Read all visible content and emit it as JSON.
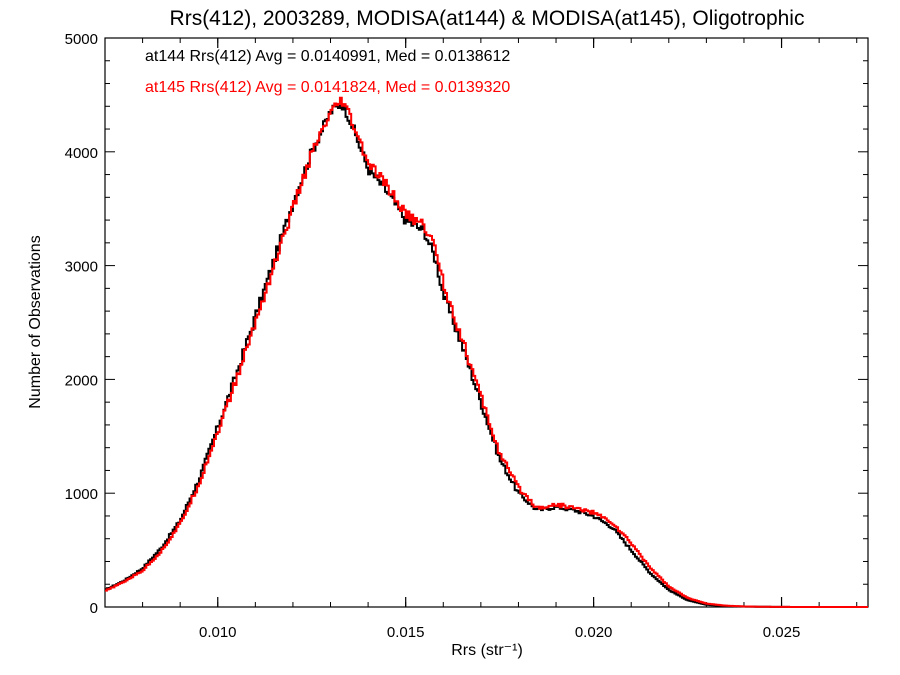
{
  "chart_data": {
    "type": "line",
    "title": "Rrs(412), 2003289, MODISA(at144) & MODISA(at145), Oligotrophic",
    "xlabel": "Rrs (str⁻¹)",
    "ylabel": "Number of Observations",
    "xlim": [
      0.007,
      0.0273
    ],
    "ylim": [
      0,
      5000
    ],
    "xticks": [
      0.01,
      0.015,
      0.02,
      0.025
    ],
    "xtick_labels": [
      "0.010",
      "0.015",
      "0.020",
      "0.025"
    ],
    "yticks": [
      0,
      1000,
      2000,
      3000,
      4000,
      5000
    ],
    "ytick_labels": [
      "0",
      "1000",
      "2000",
      "3000",
      "4000",
      "5000"
    ],
    "grid": false,
    "legend_position": "top-left",
    "series": [
      {
        "name": "at144",
        "color": "#000000",
        "label": "at144 Rrs(412) Avg = 0.0140991, Med = 0.0138612",
        "x": [
          0.007,
          0.0075,
          0.008,
          0.0085,
          0.009,
          0.0095,
          0.01,
          0.0105,
          0.011,
          0.0115,
          0.012,
          0.0125,
          0.013,
          0.0133,
          0.0135,
          0.014,
          0.0145,
          0.015,
          0.0155,
          0.0158,
          0.016,
          0.0165,
          0.017,
          0.0175,
          0.018,
          0.0185,
          0.019,
          0.0195,
          0.02,
          0.0205,
          0.021,
          0.0215,
          0.022,
          0.0225,
          0.023,
          0.0235,
          0.024,
          0.0245,
          0.025,
          0.0255,
          0.026,
          0.0265,
          0.027,
          0.0273
        ],
        "y": [
          150,
          230,
          340,
          520,
          760,
          1120,
          1580,
          2050,
          2550,
          3050,
          3550,
          4000,
          4350,
          4430,
          4300,
          3850,
          3650,
          3400,
          3300,
          3050,
          2750,
          2300,
          1800,
          1300,
          1000,
          850,
          880,
          850,
          800,
          700,
          500,
          300,
          150,
          60,
          20,
          8,
          4,
          2,
          1,
          0,
          0,
          0,
          0,
          0
        ]
      },
      {
        "name": "at145",
        "color": "#ff0000",
        "label": "at145 Rrs(412) Avg = 0.0141824, Med = 0.0139320",
        "x": [
          0.007,
          0.0075,
          0.008,
          0.0085,
          0.009,
          0.0095,
          0.01,
          0.0105,
          0.011,
          0.0115,
          0.012,
          0.0125,
          0.013,
          0.0133,
          0.0135,
          0.014,
          0.0145,
          0.015,
          0.0155,
          0.0158,
          0.016,
          0.0165,
          0.017,
          0.0175,
          0.018,
          0.0185,
          0.019,
          0.0195,
          0.02,
          0.0205,
          0.021,
          0.0215,
          0.022,
          0.0225,
          0.023,
          0.0235,
          0.024,
          0.0245,
          0.025,
          0.0255,
          0.026,
          0.0265,
          0.027,
          0.0273
        ],
        "y": [
          140,
          220,
          320,
          490,
          730,
          1080,
          1540,
          2000,
          2500,
          3000,
          3500,
          3980,
          4330,
          4450,
          4320,
          3900,
          3700,
          3450,
          3350,
          3150,
          2850,
          2350,
          1850,
          1350,
          1050,
          870,
          900,
          870,
          830,
          740,
          560,
          350,
          180,
          80,
          30,
          12,
          5,
          2,
          1,
          0,
          0,
          0,
          0,
          0
        ]
      }
    ]
  }
}
